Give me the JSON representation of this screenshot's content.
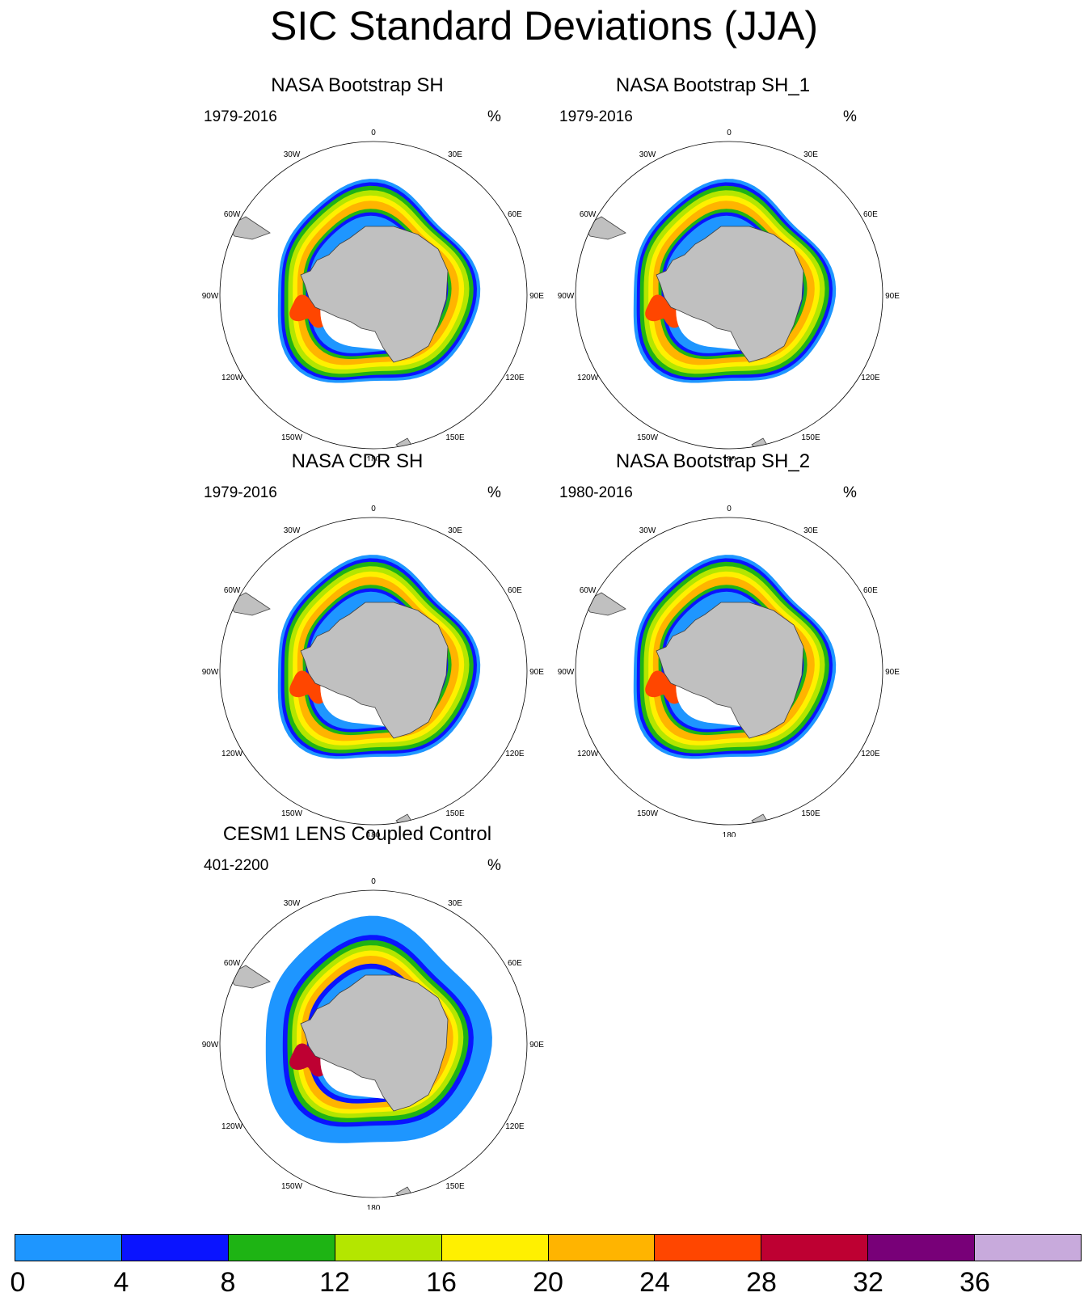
{
  "title": "SIC Standard Deviations (JJA)",
  "panels": [
    {
      "title": "NASA Bootstrap SH",
      "years": "1979-2016",
      "units": "%",
      "variant": "obs"
    },
    {
      "title": "NASA Bootstrap SH_1",
      "years": "1979-2016",
      "units": "%",
      "variant": "obs"
    },
    {
      "title": "NASA CDR SH",
      "years": "1979-2016",
      "units": "%",
      "variant": "obs"
    },
    {
      "title": "NASA Bootstrap SH_2",
      "years": "1980-2016",
      "units": "%",
      "variant": "obs"
    },
    {
      "title": "CESM1 LENS Coupled Control",
      "years": "401-2200",
      "units": "%",
      "variant": "model"
    }
  ],
  "map_labels": {
    "lon_0": "0",
    "lon_30w": "30W",
    "lon_30e": "30E",
    "lon_60w": "60W",
    "lon_60e": "60E",
    "lon_90w": "90W",
    "lon_90e": "90E",
    "lon_120w": "120W",
    "lon_120e": "120E",
    "lon_150w": "150W",
    "lon_150e": "150E",
    "lon_180": "180"
  },
  "colorbar": {
    "colors": [
      "#1e96ff",
      "#0a14ff",
      "#1eb414",
      "#b4e600",
      "#fff000",
      "#ffb400",
      "#ff4600",
      "#be0032",
      "#780078",
      "#c8aadc"
    ],
    "labels": [
      "0",
      "4",
      "8",
      "12",
      "16",
      "20",
      "24",
      "28",
      "32",
      "36"
    ]
  },
  "chart_data": {
    "type": "heatmap",
    "projection": "south polar stereographic",
    "variable": "sea ice concentration standard deviation",
    "season": "JJA",
    "units": "%",
    "levels": [
      0,
      4,
      8,
      12,
      16,
      20,
      24,
      28,
      32,
      36
    ],
    "panels": [
      {
        "title": "NASA Bootstrap SH",
        "period": "1979-2016"
      },
      {
        "title": "NASA Bootstrap SH_1",
        "period": "1979-2016"
      },
      {
        "title": "NASA CDR SH",
        "period": "1979-2016"
      },
      {
        "title": "NASA Bootstrap SH_2",
        "period": "1980-2016"
      },
      {
        "title": "CESM1 LENS Coupled Control",
        "period": "401-2200"
      }
    ]
  }
}
